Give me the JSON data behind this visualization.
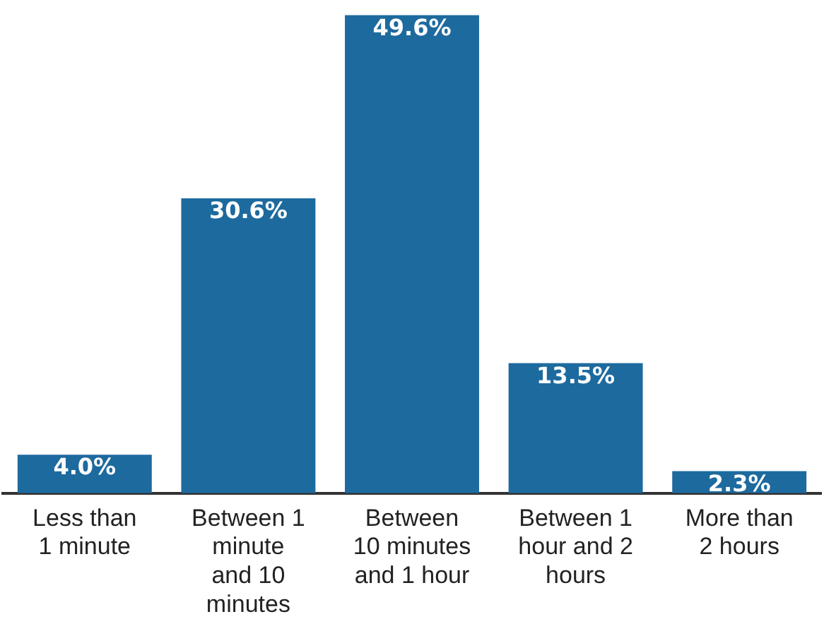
{
  "chart_data": {
    "type": "bar",
    "categories": [
      "Less than 1 minute",
      "Between 1 minute and 10 minutes",
      "Between 10 minutes and 1 hour",
      "Between 1 hour and 2 hours",
      "More than 2 hours"
    ],
    "values": [
      4.0,
      30.6,
      49.6,
      13.5,
      2.3
    ],
    "value_labels": [
      "4.0%",
      "30.6%",
      "49.6%",
      "13.5%",
      "2.3%"
    ],
    "color": "#1d6a9e",
    "legend": false,
    "grid": false
  }
}
